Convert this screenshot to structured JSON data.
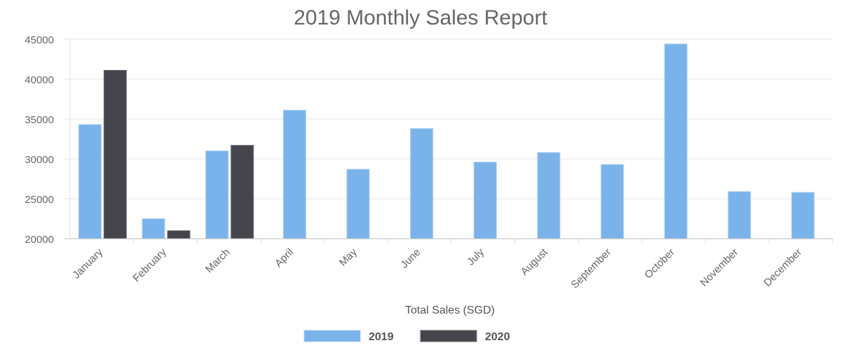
{
  "chart_data": {
    "type": "bar",
    "title": "2019 Monthly Sales Report",
    "xlabel": "Total Sales (SGD)",
    "ylabel": "",
    "ylim": [
      20000,
      45000
    ],
    "yticks": [
      20000,
      25000,
      30000,
      35000,
      40000,
      45000
    ],
    "grid": true,
    "legend_position": "bottom",
    "categories": [
      "January",
      "February",
      "March",
      "April",
      "May",
      "June",
      "July",
      "August",
      "September",
      "October",
      "November",
      "December"
    ],
    "series": [
      {
        "name": "2019",
        "color": "#7ab3ea",
        "values": [
          34300,
          22500,
          31000,
          36100,
          28700,
          33800,
          29600,
          30800,
          29300,
          44400,
          25900,
          25800
        ]
      },
      {
        "name": "2020",
        "color": "#45454d",
        "values": [
          41100,
          21000,
          31700,
          null,
          null,
          null,
          null,
          null,
          null,
          null,
          null,
          null
        ]
      }
    ]
  }
}
